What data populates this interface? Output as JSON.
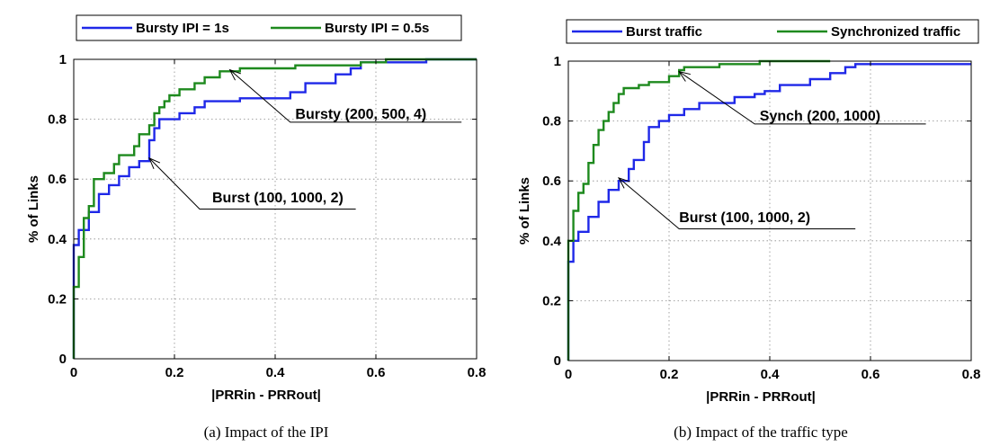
{
  "colors": {
    "blue": "#1f28e8",
    "green": "#1e8a1e"
  },
  "chart_data": [
    {
      "type": "line",
      "xlabel": "|PRRin - PRRout|",
      "ylabel": "% of Links",
      "xlim": [
        0,
        0.8
      ],
      "ylim": [
        0,
        1
      ],
      "xticks": [
        "0",
        "0.2",
        "0.4",
        "0.6",
        "0.8"
      ],
      "yticks": [
        "0",
        "0.2",
        "0.4",
        "0.6",
        "0.8",
        "1"
      ],
      "grid": true,
      "legend_position": "top",
      "caption": "(a) Impact of the IPI",
      "series": [
        {
          "name": "Bursty IPI = 1s",
          "color": "#1f28e8",
          "points": [
            [
              0,
              0
            ],
            [
              0,
              0.38
            ],
            [
              0.01,
              0.38
            ],
            [
              0.01,
              0.43
            ],
            [
              0.03,
              0.43
            ],
            [
              0.03,
              0.49
            ],
            [
              0.05,
              0.49
            ],
            [
              0.05,
              0.55
            ],
            [
              0.07,
              0.55
            ],
            [
              0.07,
              0.58
            ],
            [
              0.09,
              0.58
            ],
            [
              0.09,
              0.61
            ],
            [
              0.11,
              0.61
            ],
            [
              0.11,
              0.64
            ],
            [
              0.13,
              0.64
            ],
            [
              0.13,
              0.66
            ],
            [
              0.15,
              0.66
            ],
            [
              0.15,
              0.73
            ],
            [
              0.16,
              0.73
            ],
            [
              0.16,
              0.77
            ],
            [
              0.17,
              0.77
            ],
            [
              0.17,
              0.8
            ],
            [
              0.21,
              0.8
            ],
            [
              0.21,
              0.82
            ],
            [
              0.24,
              0.82
            ],
            [
              0.24,
              0.84
            ],
            [
              0.26,
              0.84
            ],
            [
              0.26,
              0.86
            ],
            [
              0.33,
              0.86
            ],
            [
              0.33,
              0.87
            ],
            [
              0.43,
              0.87
            ],
            [
              0.43,
              0.89
            ],
            [
              0.46,
              0.89
            ],
            [
              0.46,
              0.92
            ],
            [
              0.52,
              0.92
            ],
            [
              0.52,
              0.95
            ],
            [
              0.55,
              0.95
            ],
            [
              0.55,
              0.97
            ],
            [
              0.57,
              0.97
            ],
            [
              0.57,
              0.99
            ],
            [
              0.7,
              0.99
            ],
            [
              0.7,
              1.0
            ],
            [
              0.8,
              1.0
            ]
          ]
        },
        {
          "name": "Bursty IPI = 0.5s",
          "color": "#1e8a1e",
          "points": [
            [
              0,
              0
            ],
            [
              0,
              0.24
            ],
            [
              0.01,
              0.24
            ],
            [
              0.01,
              0.34
            ],
            [
              0.02,
              0.34
            ],
            [
              0.02,
              0.47
            ],
            [
              0.03,
              0.47
            ],
            [
              0.03,
              0.51
            ],
            [
              0.04,
              0.51
            ],
            [
              0.04,
              0.6
            ],
            [
              0.06,
              0.6
            ],
            [
              0.06,
              0.62
            ],
            [
              0.08,
              0.62
            ],
            [
              0.08,
              0.65
            ],
            [
              0.09,
              0.65
            ],
            [
              0.09,
              0.68
            ],
            [
              0.12,
              0.68
            ],
            [
              0.12,
              0.71
            ],
            [
              0.13,
              0.71
            ],
            [
              0.13,
              0.75
            ],
            [
              0.15,
              0.75
            ],
            [
              0.15,
              0.78
            ],
            [
              0.16,
              0.78
            ],
            [
              0.16,
              0.82
            ],
            [
              0.17,
              0.82
            ],
            [
              0.17,
              0.84
            ],
            [
              0.18,
              0.84
            ],
            [
              0.18,
              0.86
            ],
            [
              0.19,
              0.86
            ],
            [
              0.19,
              0.88
            ],
            [
              0.21,
              0.88
            ],
            [
              0.21,
              0.9
            ],
            [
              0.24,
              0.9
            ],
            [
              0.24,
              0.92
            ],
            [
              0.26,
              0.92
            ],
            [
              0.26,
              0.94
            ],
            [
              0.29,
              0.94
            ],
            [
              0.29,
              0.96
            ],
            [
              0.33,
              0.96
            ],
            [
              0.33,
              0.97
            ],
            [
              0.44,
              0.97
            ],
            [
              0.44,
              0.98
            ],
            [
              0.57,
              0.98
            ],
            [
              0.57,
              0.99
            ],
            [
              0.62,
              0.99
            ],
            [
              0.62,
              1.0
            ],
            [
              0.8,
              1.0
            ]
          ]
        }
      ],
      "annotations": [
        {
          "label": "Bursty (200, 500, 4)",
          "target": [
            0.31,
            0.965
          ],
          "elbow": [
            0.43,
            0.79
          ],
          "end": [
            0.77,
            0.79
          ],
          "text_at": [
            0.44,
            0.82
          ]
        },
        {
          "label": "Burst (100, 1000, 2)",
          "target": [
            0.15,
            0.67
          ],
          "elbow": [
            0.25,
            0.5
          ],
          "end": [
            0.56,
            0.5
          ],
          "text_at": [
            0.275,
            0.54
          ]
        }
      ]
    },
    {
      "type": "line",
      "xlabel": "|PRRin - PRRout|",
      "ylabel": "% of Links",
      "xlim": [
        0,
        0.8
      ],
      "ylim": [
        0,
        1
      ],
      "xticks": [
        "0",
        "0.2",
        "0.4",
        "0.6",
        "0.8"
      ],
      "yticks": [
        "0",
        "0.2",
        "0.4",
        "0.6",
        "0.8",
        "1"
      ],
      "grid": true,
      "legend_position": "top",
      "caption": "(b) Impact of the traffic type",
      "series": [
        {
          "name": "Burst traffic",
          "color": "#1f28e8",
          "points": [
            [
              0,
              0
            ],
            [
              0,
              0.33
            ],
            [
              0.01,
              0.33
            ],
            [
              0.01,
              0.4
            ],
            [
              0.02,
              0.4
            ],
            [
              0.02,
              0.43
            ],
            [
              0.04,
              0.43
            ],
            [
              0.04,
              0.48
            ],
            [
              0.06,
              0.48
            ],
            [
              0.06,
              0.53
            ],
            [
              0.08,
              0.53
            ],
            [
              0.08,
              0.57
            ],
            [
              0.1,
              0.57
            ],
            [
              0.1,
              0.6
            ],
            [
              0.12,
              0.6
            ],
            [
              0.12,
              0.64
            ],
            [
              0.13,
              0.64
            ],
            [
              0.13,
              0.67
            ],
            [
              0.15,
              0.67
            ],
            [
              0.15,
              0.73
            ],
            [
              0.16,
              0.73
            ],
            [
              0.16,
              0.78
            ],
            [
              0.18,
              0.78
            ],
            [
              0.18,
              0.8
            ],
            [
              0.2,
              0.8
            ],
            [
              0.2,
              0.82
            ],
            [
              0.23,
              0.82
            ],
            [
              0.23,
              0.84
            ],
            [
              0.26,
              0.84
            ],
            [
              0.26,
              0.86
            ],
            [
              0.33,
              0.86
            ],
            [
              0.33,
              0.88
            ],
            [
              0.37,
              0.88
            ],
            [
              0.37,
              0.89
            ],
            [
              0.39,
              0.89
            ],
            [
              0.39,
              0.9
            ],
            [
              0.42,
              0.9
            ],
            [
              0.42,
              0.92
            ],
            [
              0.48,
              0.92
            ],
            [
              0.48,
              0.94
            ],
            [
              0.52,
              0.94
            ],
            [
              0.52,
              0.96
            ],
            [
              0.55,
              0.96
            ],
            [
              0.55,
              0.98
            ],
            [
              0.57,
              0.98
            ],
            [
              0.57,
              0.99
            ],
            [
              0.8,
              0.99
            ]
          ]
        },
        {
          "name": "Synchronized traffic",
          "color": "#1e8a1e",
          "points": [
            [
              0,
              0
            ],
            [
              0,
              0.4
            ],
            [
              0.01,
              0.4
            ],
            [
              0.01,
              0.5
            ],
            [
              0.02,
              0.5
            ],
            [
              0.02,
              0.56
            ],
            [
              0.03,
              0.56
            ],
            [
              0.03,
              0.59
            ],
            [
              0.04,
              0.59
            ],
            [
              0.04,
              0.66
            ],
            [
              0.05,
              0.66
            ],
            [
              0.05,
              0.72
            ],
            [
              0.06,
              0.72
            ],
            [
              0.06,
              0.77
            ],
            [
              0.07,
              0.77
            ],
            [
              0.07,
              0.8
            ],
            [
              0.08,
              0.8
            ],
            [
              0.08,
              0.83
            ],
            [
              0.09,
              0.83
            ],
            [
              0.09,
              0.86
            ],
            [
              0.1,
              0.86
            ],
            [
              0.1,
              0.89
            ],
            [
              0.11,
              0.89
            ],
            [
              0.11,
              0.91
            ],
            [
              0.14,
              0.91
            ],
            [
              0.14,
              0.92
            ],
            [
              0.16,
              0.92
            ],
            [
              0.16,
              0.93
            ],
            [
              0.2,
              0.93
            ],
            [
              0.2,
              0.95
            ],
            [
              0.22,
              0.95
            ],
            [
              0.22,
              0.97
            ],
            [
              0.23,
              0.97
            ],
            [
              0.23,
              0.98
            ],
            [
              0.3,
              0.98
            ],
            [
              0.3,
              0.99
            ],
            [
              0.38,
              0.99
            ],
            [
              0.38,
              1.0
            ],
            [
              0.52,
              1.0
            ]
          ]
        }
      ],
      "annotations": [
        {
          "label": "Synch (200, 1000)",
          "target": [
            0.22,
            0.965
          ],
          "elbow": [
            0.37,
            0.79
          ],
          "end": [
            0.71,
            0.79
          ],
          "text_at": [
            0.38,
            0.82
          ]
        },
        {
          "label": "Burst (100, 1000, 2)",
          "target": [
            0.1,
            0.61
          ],
          "elbow": [
            0.22,
            0.44
          ],
          "end": [
            0.57,
            0.44
          ],
          "text_at": [
            0.22,
            0.48
          ]
        }
      ]
    }
  ]
}
